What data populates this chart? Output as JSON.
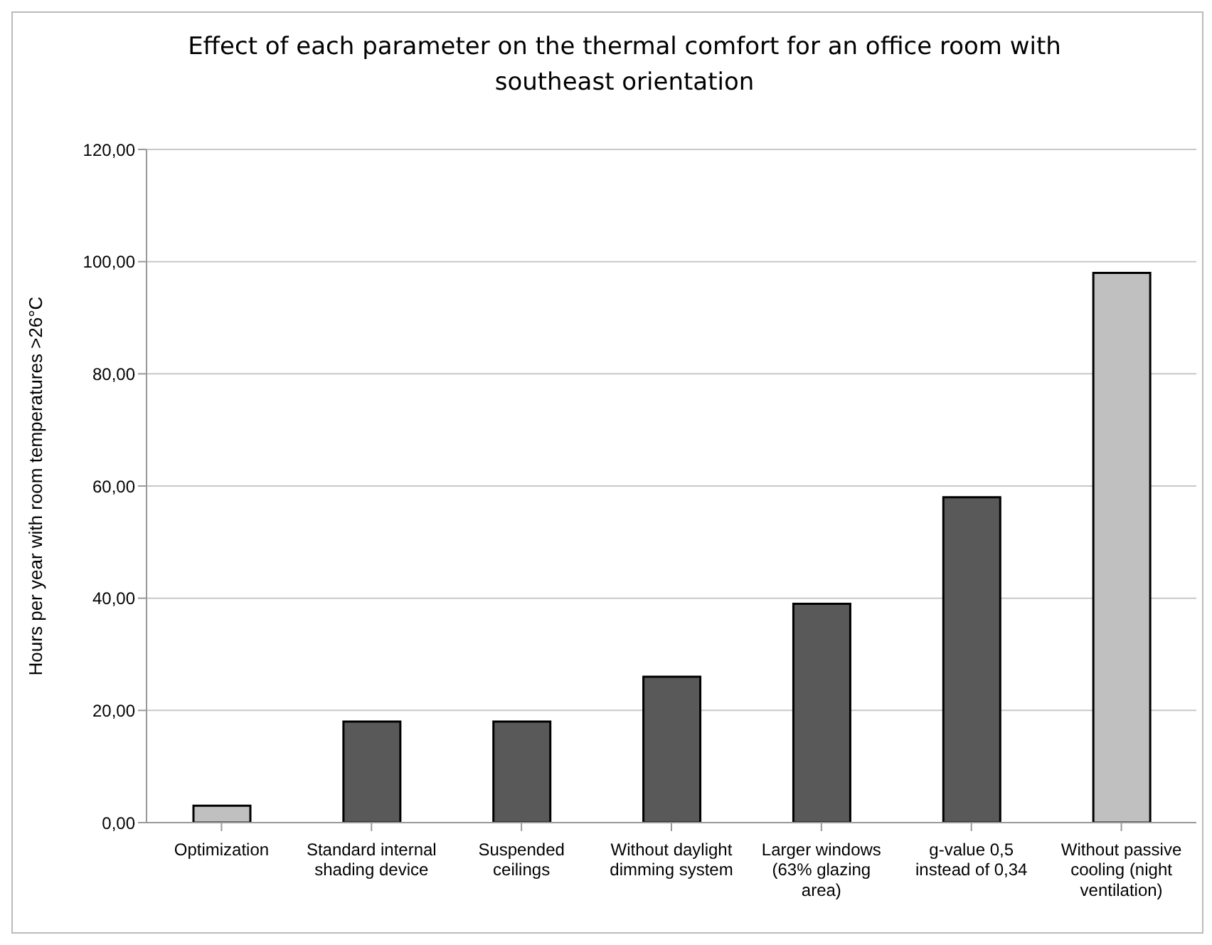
{
  "chart_data": {
    "type": "bar",
    "title": "Effect of each parameter on the thermal comfort for an office room with southeast orientation",
    "ylabel": "Hours per year with room temperatures >26°C",
    "categories": [
      "Optimization",
      "Standard internal shading device",
      "Suspended ceilings",
      "Without daylight dimming system",
      "Larger windows (63% glazing area)",
      "g-value 0,5 instead of 0,34",
      "Without passive cooling (night ventilation)"
    ],
    "values": [
      3,
      18,
      18,
      26,
      39,
      58,
      98
    ],
    "colors": [
      "#c0c0c0",
      "#595959",
      "#595959",
      "#595959",
      "#595959",
      "#595959",
      "#c0c0c0"
    ],
    "ylim": [
      0,
      120
    ],
    "yticks": [
      {
        "value": 0,
        "label": "0,00"
      },
      {
        "value": 20,
        "label": "20,00"
      },
      {
        "value": 40,
        "label": "40,00"
      },
      {
        "value": 60,
        "label": "60,00"
      },
      {
        "value": 80,
        "label": "80,00"
      },
      {
        "value": 100,
        "label": "100,00"
      },
      {
        "value": 120,
        "label": "120,00"
      }
    ],
    "grid": "y",
    "legend": false
  }
}
